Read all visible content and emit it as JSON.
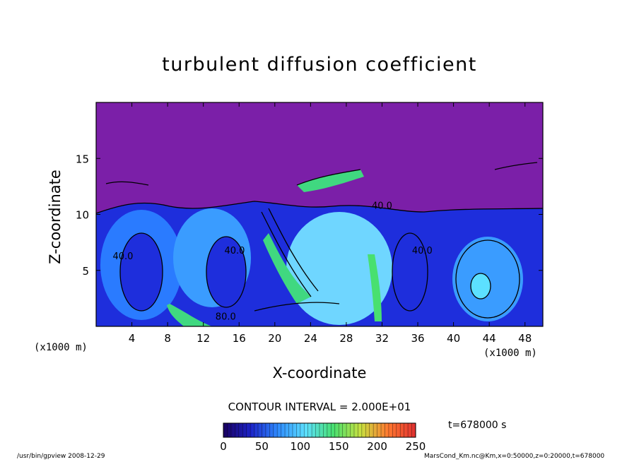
{
  "chart_data": {
    "type": "heatmap",
    "title": "turbulent diffusion coefficient",
    "xlabel": "X-coordinate",
    "ylabel": "Z-coordinate",
    "x_unit_left": "(x1000 m)",
    "x_unit_right": "(x1000 m)",
    "x_ticks": [
      4,
      8,
      12,
      16,
      20,
      24,
      28,
      32,
      36,
      40,
      44,
      48
    ],
    "y_ticks": [
      5,
      10,
      15
    ],
    "xlim": [
      0,
      50
    ],
    "ylim": [
      0,
      20
    ],
    "contour_labels": [
      {
        "text": "40.0",
        "x": 32,
        "y": 10.5
      },
      {
        "text": "40.0",
        "x": 15.5,
        "y": 6.5
      },
      {
        "text": "40.0",
        "x": 36.5,
        "y": 6.5
      },
      {
        "text": "80.0",
        "x": 14.5,
        "y": 0.6
      },
      {
        "text": "40.0",
        "x": 3,
        "y": 6
      }
    ],
    "contour_interval_text": "CONTOUR INTERVAL = 2.000E+01",
    "colorbar": {
      "min": 0,
      "max": 250,
      "ticks": [
        0,
        50,
        100,
        150,
        200,
        250
      ],
      "stops": [
        "#1a0060",
        "#1c23c8",
        "#2f8cff",
        "#5ce0ff",
        "#48e070",
        "#c8e040",
        "#ff7830",
        "#e03030"
      ]
    },
    "time_text": "t=678000 s",
    "colors": {
      "upper_region": "#7b1fa8",
      "boundary_blue": "#1e2edc",
      "mid_blue": "#2a7bff",
      "light_cyan": "#6fd6ff",
      "green": "#40d880",
      "contour_line": "#000000"
    }
  },
  "footer": {
    "left": "/usr/bin/gpview  2008-12-29",
    "right": "MarsCond_Km.nc@Km,x=0:50000,z=0:20000,t=678000"
  }
}
